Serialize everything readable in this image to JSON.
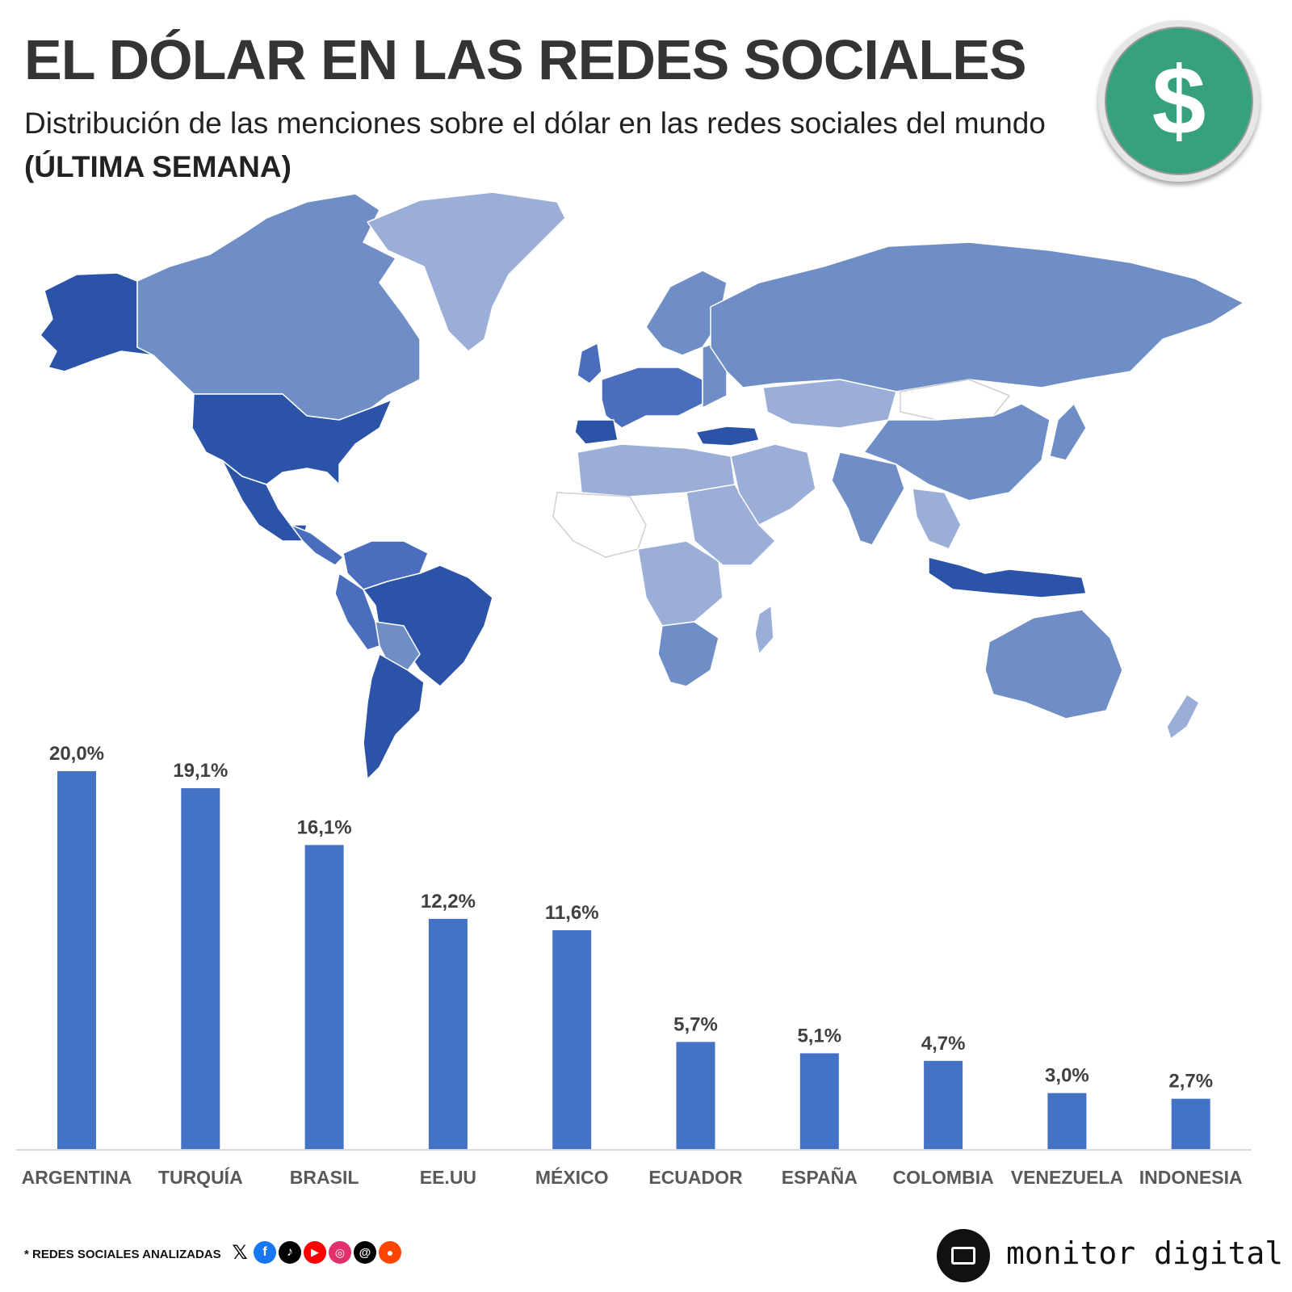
{
  "header": {
    "title": "EL DÓLAR EN LAS REDES SOCIALES",
    "subtitle": "Distribución de las menciones sobre el dólar en las redes sociales del mundo",
    "subtitle_emphasis": "(ÚLTIMA SEMANA)",
    "badge_symbol": "$"
  },
  "map_colors": {
    "darkest": "#2b54a8",
    "dark": "#4a6dbd",
    "medium": "#6f8ec6",
    "light": "#9aaed8",
    "none": "#ffffff"
  },
  "chart_data": {
    "type": "bar",
    "categories": [
      "ARGENTINA",
      "TURQUÍA",
      "BRASIL",
      "EE.UU",
      "MÉXICO",
      "ECUADOR",
      "ESPAÑA",
      "COLOMBIA",
      "VENEZUELA",
      "INDONESIA"
    ],
    "values": [
      20.0,
      19.1,
      16.1,
      12.2,
      11.6,
      5.7,
      5.1,
      4.7,
      3.0,
      2.7
    ],
    "value_labels": [
      "20,0%",
      "19,1%",
      "16,1%",
      "12,2%",
      "11,6%",
      "5,7%",
      "5,1%",
      "4,7%",
      "3,0%",
      "2,7%"
    ],
    "unit": "%",
    "ylim": [
      0,
      20.0
    ],
    "grid": false,
    "color": "#4472c4"
  },
  "footer": {
    "note": "* REDES SOCIALES ANALIZADAS",
    "social_icons": [
      "x-icon",
      "facebook-icon",
      "tiktok-icon",
      "youtube-icon",
      "instagram-icon",
      "threads-icon",
      "reddit-icon"
    ],
    "brand": "monitor digital"
  }
}
